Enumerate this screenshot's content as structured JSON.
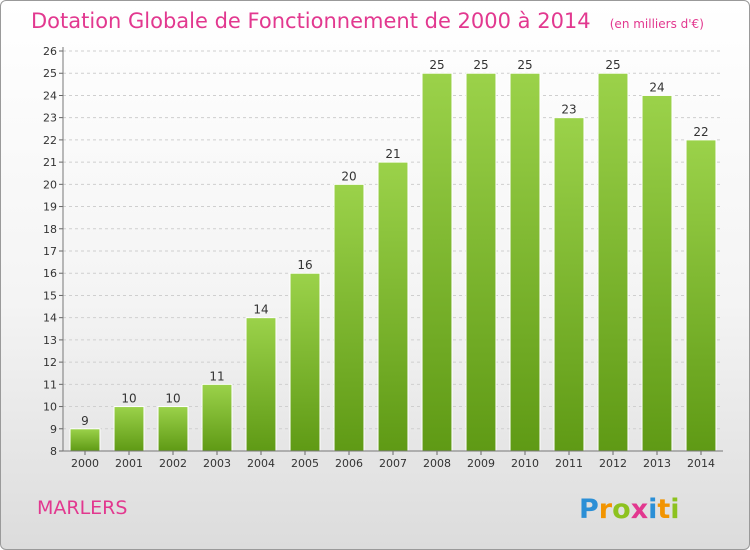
{
  "chart_data": {
    "type": "bar",
    "title": "Dotation Globale de Fonctionnement de 2000 à 2014",
    "subtitle": "(en milliers d'€)",
    "categories": [
      "2000",
      "2001",
      "2002",
      "2003",
      "2004",
      "2005",
      "2006",
      "2007",
      "2008",
      "2009",
      "2010",
      "2011",
      "2012",
      "2013",
      "2014"
    ],
    "values": [
      9,
      10,
      10,
      11,
      14,
      16,
      20,
      21,
      25,
      25,
      25,
      23,
      25,
      24,
      22
    ],
    "ylim": [
      8,
      26
    ],
    "yticks": [
      "8",
      "9",
      "10",
      "11",
      "12",
      "13",
      "14",
      "15",
      "16",
      "17",
      "18",
      "19",
      "20",
      "21",
      "22",
      "23",
      "24",
      "25",
      "26"
    ],
    "grid": true,
    "bar_color": "#7cbd2a"
  },
  "place_name": "MARLERS",
  "logo": {
    "letters": [
      "P",
      "r",
      "o",
      "x",
      "i",
      "t",
      "i"
    ],
    "colors": [
      "#2b8fd6",
      "#f29400",
      "#8dc21f",
      "#e2388f",
      "#2b8fd6",
      "#f29400",
      "#8dc21f"
    ]
  }
}
